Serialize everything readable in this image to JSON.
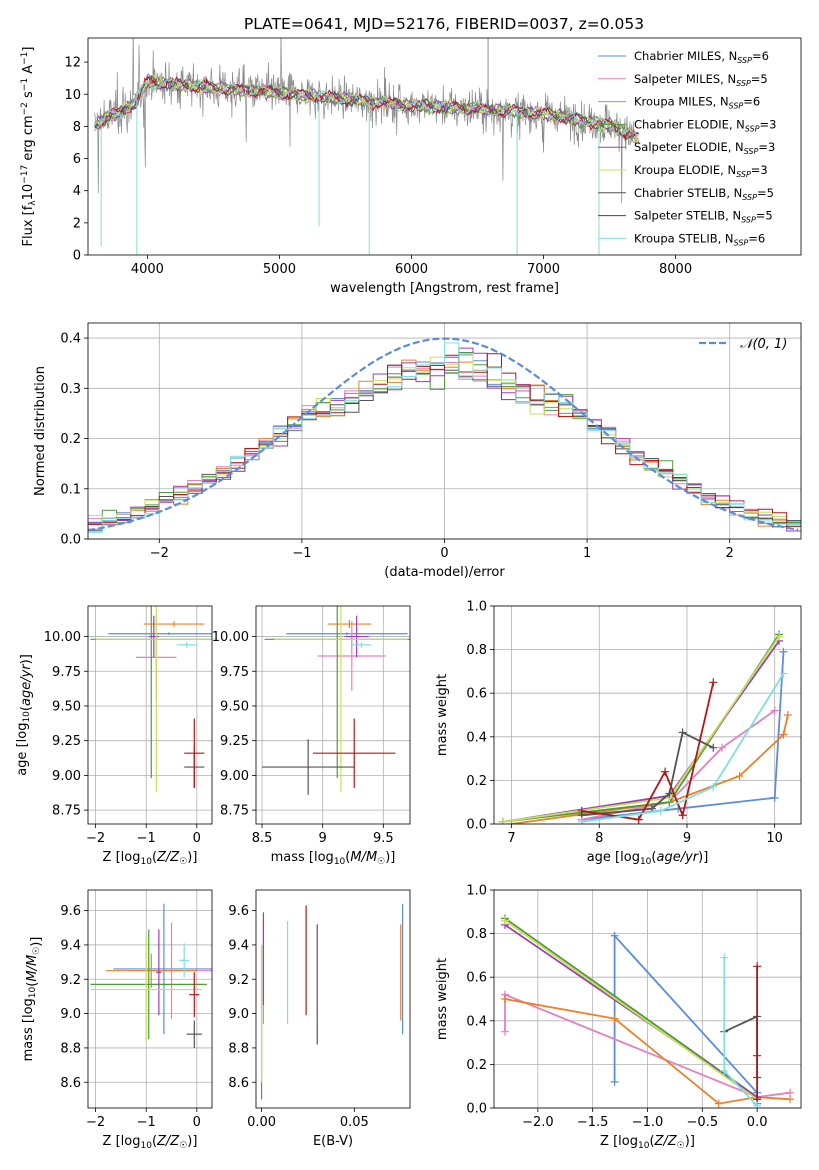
{
  "figure_title": "PLATE=0641, MJD=52176, FIBERID=0037, z=0.053",
  "colors": {
    "Chabrier MILES": "#5b8dd9",
    "Salpeter MILES": "#e57fc1",
    "Kroupa MILES": "#e8822a",
    "Chabrier ELODIE": "#4f9a3a",
    "Salpeter ELODIE": "#9b3fb8",
    "Kroupa ELODIE": "#c7e05a",
    "Chabrier STELIB": "#555555",
    "Salpeter STELIB": "#b01818",
    "Kroupa STELIB": "#7fdfe0",
    "data": "#8a8a8a",
    "normal": "#5b8dd9"
  },
  "chart_data": [
    {
      "id": "spectrum",
      "type": "line",
      "xlabel": "wavelength [Angstrom, rest frame]",
      "ylabel": "Flux [f_λ 10^-17 erg cm^-2 s^-1 A^-1]",
      "xlim": [
        3550,
        8950
      ],
      "ylim": [
        0,
        13.5
      ],
      "xticks": [
        4000,
        5000,
        6000,
        7000,
        8000
      ],
      "yticks": [
        0,
        2,
        4,
        6,
        8,
        10,
        12
      ],
      "grid": false,
      "legend_position": "top-right",
      "legend": [
        {
          "label": "Chabrier MILES",
          "nssp": "6"
        },
        {
          "label": "Salpeter MILES",
          "nssp": "5"
        },
        {
          "label": "Kroupa MILES",
          "nssp": "6"
        },
        {
          "label": "Chabrier ELODIE",
          "nssp": "3"
        },
        {
          "label": "Salpeter ELODIE",
          "nssp": "3"
        },
        {
          "label": "Kroupa ELODIE",
          "nssp": "3"
        },
        {
          "label": "Chabrier STELIB",
          "nssp": "5"
        },
        {
          "label": "Salpeter STELIB",
          "nssp": "5"
        },
        {
          "label": "Kroupa STELIB",
          "nssp": "6"
        }
      ],
      "continuum": {
        "wavelength": [
          3600,
          3700,
          3800,
          3900,
          4000,
          4200,
          4500,
          5000,
          5500,
          6000,
          6500,
          7000,
          7500,
          7700
        ],
        "flux": [
          8.0,
          8.6,
          8.9,
          9.4,
          10.8,
          10.6,
          10.4,
          10.1,
          9.7,
          9.3,
          9.1,
          8.8,
          8.1,
          7.3
        ]
      },
      "features": [
        {
          "wavelength": 3650,
          "flux": 0.5
        },
        {
          "wavelength": 3920,
          "flux": 0.0
        },
        {
          "wavelength": 5300,
          "flux": 1.8
        },
        {
          "wavelength": 5680,
          "flux": 0.0
        },
        {
          "wavelength": 6580,
          "flux": 13.5
        },
        {
          "wavelength": 6800,
          "flux": 0.0
        },
        {
          "wavelength": 7420,
          "flux": 0.0
        }
      ]
    },
    {
      "id": "residuals",
      "type": "line",
      "xlabel": "(data-model)/error",
      "ylabel": "Normed distribution",
      "xlim": [
        -2.5,
        2.5
      ],
      "ylim": [
        0,
        0.43
      ],
      "xticks": [
        -2,
        -1,
        0,
        1,
        2
      ],
      "yticks": [
        0.0,
        0.1,
        0.2,
        0.3,
        0.4
      ],
      "grid": true,
      "legend_position": "top-right",
      "normal_label": "𝒩(0, 1)",
      "bin_width": 0.1
    },
    {
      "id": "age_vs_Z",
      "type": "scatter",
      "xlabel": "Z [log10(Z/Z☉)]",
      "ylabel": "age  [log10(age/yr)]",
      "xlim": [
        -2.15,
        0.3
      ],
      "ylim": [
        8.65,
        10.22
      ],
      "xticks": [
        -2,
        -1,
        0
      ],
      "yticks": [
        8.75,
        9.0,
        9.25,
        9.5,
        9.75,
        10.0
      ],
      "grid": true,
      "series": [
        {
          "name": "Chabrier MILES",
          "x": -0.55,
          "xerr": 1.2,
          "y": 10.02,
          "yerr": 0.01
        },
        {
          "name": "Salpeter MILES",
          "x": -0.8,
          "xerr": 0.4,
          "y": 9.85,
          "yerr": 0.3
        },
        {
          "name": "Kroupa MILES",
          "x": -0.45,
          "xerr": 0.6,
          "y": 10.09,
          "yerr": 0.02
        },
        {
          "name": "Chabrier ELODIE",
          "x": -0.9,
          "xerr": 1.2,
          "y": 9.98,
          "yerr": 1.0
        },
        {
          "name": "Salpeter ELODIE",
          "x": -0.85,
          "xerr": 0.1,
          "y": 10.0,
          "yerr": 0.15
        },
        {
          "name": "Kroupa ELODIE",
          "x": -0.8,
          "xerr": 1.2,
          "y": 9.98,
          "yerr": 1.1
        },
        {
          "name": "Chabrier STELIB",
          "x": -0.05,
          "xerr": 0.2,
          "y": 9.06,
          "yerr": 0.15
        },
        {
          "name": "Salpeter STELIB",
          "x": -0.05,
          "xerr": 0.2,
          "y": 9.16,
          "yerr": 0.25
        },
        {
          "name": "Kroupa STELIB",
          "x": -0.2,
          "xerr": 0.2,
          "y": 9.94,
          "yerr": 0.02
        }
      ]
    },
    {
      "id": "age_vs_mass",
      "type": "scatter",
      "xlabel": "mass [log10(M/M☉)]",
      "ylabel": "",
      "xlim": [
        8.45,
        9.72
      ],
      "ylim": [
        8.65,
        10.22
      ],
      "xticks": [
        8.5,
        9.0,
        9.5
      ],
      "yticks": [
        8.75,
        9.0,
        9.25,
        9.5,
        9.75,
        10.0
      ],
      "grid": true,
      "series": [
        {
          "name": "Chabrier MILES",
          "x": 9.2,
          "xerr": 0.5,
          "y": 10.02,
          "yerr": 0.01
        },
        {
          "name": "Salpeter MILES",
          "x": 9.24,
          "xerr": 0.28,
          "y": 9.86,
          "yerr": 0.25
        },
        {
          "name": "Kroupa MILES",
          "x": 9.22,
          "xerr": 0.18,
          "y": 10.09,
          "yerr": 0.03
        },
        {
          "name": "Chabrier ELODIE",
          "x": 9.12,
          "xerr": 0.6,
          "y": 9.98,
          "yerr": 1.0
        },
        {
          "name": "Salpeter ELODIE",
          "x": 9.28,
          "xerr": 0.1,
          "y": 10.0,
          "yerr": 0.15
        },
        {
          "name": "Kroupa ELODIE",
          "x": 9.15,
          "xerr": 0.55,
          "y": 9.98,
          "yerr": 1.1
        },
        {
          "name": "Chabrier STELIB",
          "x": 8.88,
          "xerr": 0.38,
          "y": 9.06,
          "yerr": 0.2
        },
        {
          "name": "Salpeter STELIB",
          "x": 9.26,
          "xerr": 0.34,
          "y": 9.16,
          "yerr": 0.25
        },
        {
          "name": "Kroupa STELIB",
          "x": 9.32,
          "xerr": 0.08,
          "y": 9.94,
          "yerr": 0.02
        }
      ]
    },
    {
      "id": "mass_weight_vs_age",
      "type": "line",
      "xlabel": "age  [log10(age/yr)]",
      "ylabel": "mass weight",
      "xlim": [
        6.8,
        10.3
      ],
      "ylim": [
        0,
        1.0
      ],
      "xticks": [
        7,
        8,
        9,
        10
      ],
      "yticks": [
        0.0,
        0.2,
        0.4,
        0.6,
        0.8,
        1.0
      ],
      "grid": true,
      "series": [
        {
          "name": "Chabrier MILES",
          "x": [
            7.8,
            8.9,
            10.0,
            10.1
          ],
          "y": [
            0.02,
            0.07,
            0.12,
            0.79
          ]
        },
        {
          "name": "Salpeter MILES",
          "x": [
            7.8,
            8.8,
            9.4,
            10.0
          ],
          "y": [
            0.02,
            0.1,
            0.35,
            0.52
          ]
        },
        {
          "name": "Kroupa MILES",
          "x": [
            7.0,
            8.8,
            9.6,
            10.1,
            10.15
          ],
          "y": [
            0.0,
            0.1,
            0.22,
            0.41,
            0.5
          ]
        },
        {
          "name": "Chabrier ELODIE",
          "x": [
            6.9,
            8.8,
            10.05
          ],
          "y": [
            0.01,
            0.1,
            0.87
          ]
        },
        {
          "name": "Salpeter ELODIE",
          "x": [
            6.9,
            8.8,
            10.05
          ],
          "y": [
            0.01,
            0.13,
            0.84
          ]
        },
        {
          "name": "Kroupa ELODIE",
          "x": [
            6.9,
            8.8,
            10.05
          ],
          "y": [
            0.01,
            0.12,
            0.86
          ]
        },
        {
          "name": "Chabrier STELIB",
          "x": [
            7.8,
            8.6,
            8.8,
            8.95,
            9.3
          ],
          "y": [
            0.04,
            0.07,
            0.14,
            0.42,
            0.35
          ]
        },
        {
          "name": "Salpeter STELIB",
          "x": [
            7.8,
            8.45,
            8.75,
            8.95,
            9.3
          ],
          "y": [
            0.06,
            0.02,
            0.24,
            0.04,
            0.65
          ]
        },
        {
          "name": "Kroupa STELIB",
          "x": [
            7.8,
            8.7,
            9.3,
            10.1
          ],
          "y": [
            0.01,
            0.06,
            0.17,
            0.69
          ]
        }
      ]
    },
    {
      "id": "mass_vs_Z",
      "type": "scatter",
      "xlabel": "Z [log10(Z/Z☉)]",
      "ylabel": "mass [log10(M/M☉)]",
      "xlim": [
        -2.15,
        0.3
      ],
      "ylim": [
        8.45,
        9.72
      ],
      "xticks": [
        -2,
        -1,
        0
      ],
      "yticks": [
        8.6,
        8.8,
        9.0,
        9.2,
        9.4,
        9.6
      ],
      "grid": true,
      "series": [
        {
          "name": "Chabrier MILES",
          "x": -0.65,
          "xerr": 1.0,
          "y": 9.26,
          "yerr": 0.38
        },
        {
          "name": "Salpeter MILES",
          "x": -0.5,
          "xerr": 0.85,
          "y": 9.25,
          "yerr": 0.28
        },
        {
          "name": "Kroupa MILES",
          "x": -0.9,
          "xerr": 0.9,
          "y": 9.25,
          "yerr": 0.1
        },
        {
          "name": "Chabrier ELODIE",
          "x": -0.95,
          "xerr": 1.15,
          "y": 9.17,
          "yerr": 0.32
        },
        {
          "name": "Salpeter ELODIE",
          "x": -0.75,
          "xerr": 0.05,
          "y": 9.24,
          "yerr": 0.25
        },
        {
          "name": "Kroupa ELODIE",
          "x": -1.0,
          "xerr": 1.1,
          "y": 9.14,
          "yerr": 0.3
        },
        {
          "name": "Chabrier STELIB",
          "x": -0.05,
          "xerr": 0.15,
          "y": 8.88,
          "yerr": 0.08
        },
        {
          "name": "Salpeter STELIB",
          "x": -0.05,
          "xerr": 0.1,
          "y": 9.11,
          "yerr": 0.13
        },
        {
          "name": "Kroupa STELIB",
          "x": -0.25,
          "xerr": 0.1,
          "y": 9.31,
          "yerr": 0.1
        }
      ]
    },
    {
      "id": "mass_vs_EBV",
      "type": "scatter",
      "xlabel": "E(B-V)",
      "ylabel": "",
      "xlim": [
        -0.003,
        0.08
      ],
      "ylim": [
        8.45,
        9.72
      ],
      "xticks": [
        0.0,
        0.05
      ],
      "xtick_labels": [
        "0.00",
        "0.05"
      ],
      "yticks": [
        8.6,
        8.8,
        9.0,
        9.2,
        9.4,
        9.6
      ],
      "grid": false,
      "series": [
        {
          "name": "Chabrier MILES",
          "x": 0.076,
          "y": 9.26,
          "yerr": 0.38
        },
        {
          "name": "Salpeter MILES",
          "x": 0.001,
          "y": 9.24,
          "yerr": 0.3
        },
        {
          "name": "Kroupa MILES",
          "x": 0.075,
          "y": 9.24,
          "yerr": 0.28
        },
        {
          "name": "Chabrier ELODIE",
          "x": 0.0,
          "y": 8.95,
          "yerr": 0.45
        },
        {
          "name": "Salpeter ELODIE",
          "x": 0.001,
          "y": 9.32,
          "yerr": 0.27
        },
        {
          "name": "Kroupa ELODIE",
          "x": 0.0,
          "y": 9.0,
          "yerr": 0.4
        },
        {
          "name": "Chabrier STELIB",
          "x": 0.03,
          "y": 9.17,
          "yerr": 0.35
        },
        {
          "name": "Salpeter STELIB",
          "x": 0.024,
          "y": 9.31,
          "yerr": 0.32
        },
        {
          "name": "Kroupa STELIB",
          "x": 0.014,
          "y": 9.24,
          "yerr": 0.3
        }
      ]
    },
    {
      "id": "mass_weight_vs_Z",
      "type": "line",
      "xlabel": "Z [log10(Z/Z☉)]",
      "ylabel": "mass weight",
      "xlim": [
        -2.4,
        0.4
      ],
      "ylim": [
        0,
        1.0
      ],
      "xticks": [
        -2.0,
        -1.5,
        -1.0,
        -0.5,
        0.0
      ],
      "xtick_labels": [
        "−2.0",
        "−1.5",
        "−1.0",
        "−0.5",
        "0.0"
      ],
      "yticks": [
        0.0,
        0.2,
        0.4,
        0.6,
        0.8,
        1.0
      ],
      "grid": true,
      "series": [
        {
          "name": "Chabrier MILES",
          "x": [
            -1.3,
            -1.3,
            0.0,
            0.0
          ],
          "y": [
            0.12,
            0.79,
            0.07,
            0.02
          ]
        },
        {
          "name": "Salpeter MILES",
          "x": [
            -2.3,
            -2.3,
            0.0,
            0.3
          ],
          "y": [
            0.35,
            0.52,
            0.05,
            0.07
          ]
        },
        {
          "name": "Kroupa MILES",
          "x": [
            -2.3,
            -1.3,
            -0.35,
            0.0,
            0.3
          ],
          "y": [
            0.5,
            0.41,
            0.02,
            0.05,
            0.04
          ]
        },
        {
          "name": "Chabrier ELODIE",
          "x": [
            -2.3,
            0.0
          ],
          "y": [
            0.87,
            0.05
          ]
        },
        {
          "name": "Salpeter ELODIE",
          "x": [
            -2.3,
            0.0
          ],
          "y": [
            0.84,
            0.05
          ]
        },
        {
          "name": "Kroupa ELODIE",
          "x": [
            -2.3,
            0.0
          ],
          "y": [
            0.86,
            0.04
          ]
        },
        {
          "name": "Chabrier STELIB",
          "x": [
            -0.3,
            0.0,
            0.0
          ],
          "y": [
            0.35,
            0.42,
            0.14
          ]
        },
        {
          "name": "Salpeter STELIB",
          "x": [
            0.0,
            0.0,
            0.0
          ],
          "y": [
            0.65,
            0.24,
            0.04
          ]
        },
        {
          "name": "Kroupa STELIB",
          "x": [
            -0.3,
            -0.3,
            0.0
          ],
          "y": [
            0.69,
            0.17,
            0.01
          ]
        }
      ]
    }
  ]
}
